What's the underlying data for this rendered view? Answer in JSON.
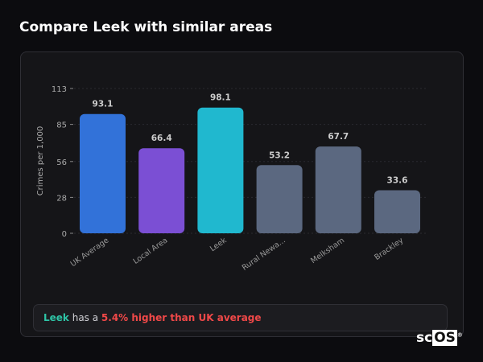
{
  "header": {
    "title": "Compare Leek with similar areas"
  },
  "chart_data": {
    "type": "bar",
    "title": "",
    "xlabel": "",
    "ylabel": "Crimes per 1,000",
    "ylim": [
      0,
      113
    ],
    "yticks": [
      0,
      28,
      56,
      85,
      113
    ],
    "grid": true,
    "categories": [
      "UK Average",
      "Local Area",
      "Leek",
      "Rural Newa...",
      "Melksham",
      "Brackley"
    ],
    "values": [
      93.1,
      66.4,
      98.1,
      53.2,
      67.7,
      33.6
    ],
    "data_labels": [
      "93.1",
      "66.4",
      "98.1",
      "53.2",
      "67.7",
      "33.6"
    ],
    "colors": [
      "#3272d9",
      "#7b4fd4",
      "#20b8cf",
      "#5b6880",
      "#5b6880",
      "#5b6880"
    ]
  },
  "summary": {
    "area": "Leek",
    "middle": " has a ",
    "highlight": "5.4% higher than UK average"
  },
  "logo": {
    "text": "scOS"
  }
}
